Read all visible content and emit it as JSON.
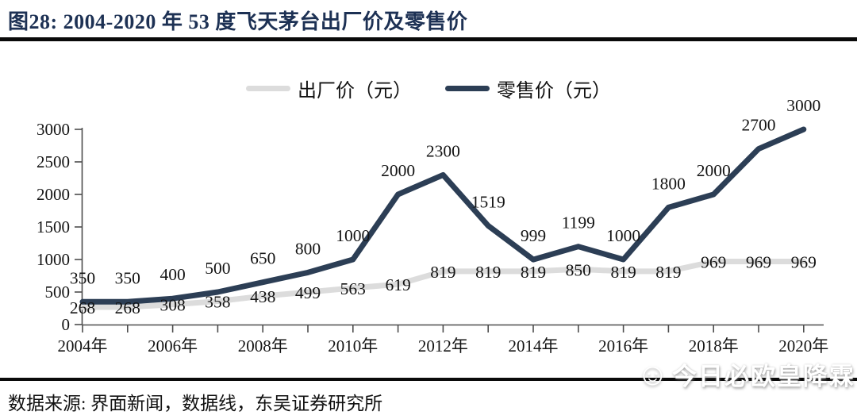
{
  "figure": {
    "title": "图28:  2004-2020 年 53 度飞天茅台出厂价及零售价",
    "source": "数据来源:  界面新闻，数据线，东吴证券研究所",
    "watermark": "今日必欧皇降霖",
    "watermark_icon": "smiley-face",
    "rule_color": "#0a0a0a",
    "title_color": "#1d3154"
  },
  "chart_data": {
    "type": "line",
    "title": "2004-2020 年 53 度飞天茅台出厂价及零售价",
    "x": [
      2004,
      2005,
      2006,
      2007,
      2008,
      2009,
      2010,
      2011,
      2012,
      2013,
      2014,
      2015,
      2016,
      2017,
      2018,
      2019,
      2020
    ],
    "x_tick_labels": [
      "2004年",
      "2006年",
      "2008年",
      "2010年",
      "2012年",
      "2014年",
      "2016年",
      "2018年",
      "2020年"
    ],
    "y_ticks": [
      0,
      500,
      1000,
      1500,
      2000,
      2500,
      3000
    ],
    "ylim": [
      0,
      3000
    ],
    "grid": false,
    "legend_position": "top",
    "series": [
      {
        "name": "出厂价（元）",
        "color": "#dcdcdc",
        "values": [
          268,
          268,
          308,
          358,
          438,
          499,
          563,
          619,
          819,
          819,
          819,
          850,
          819,
          819,
          969,
          969,
          969
        ]
      },
      {
        "name": "零售价（元）",
        "color": "#2c3e55",
        "values": [
          350,
          350,
          400,
          500,
          650,
          800,
          1000,
          2000,
          2300,
          1519,
          999,
          1199,
          1000,
          1800,
          2000,
          2700,
          3000
        ]
      }
    ]
  }
}
